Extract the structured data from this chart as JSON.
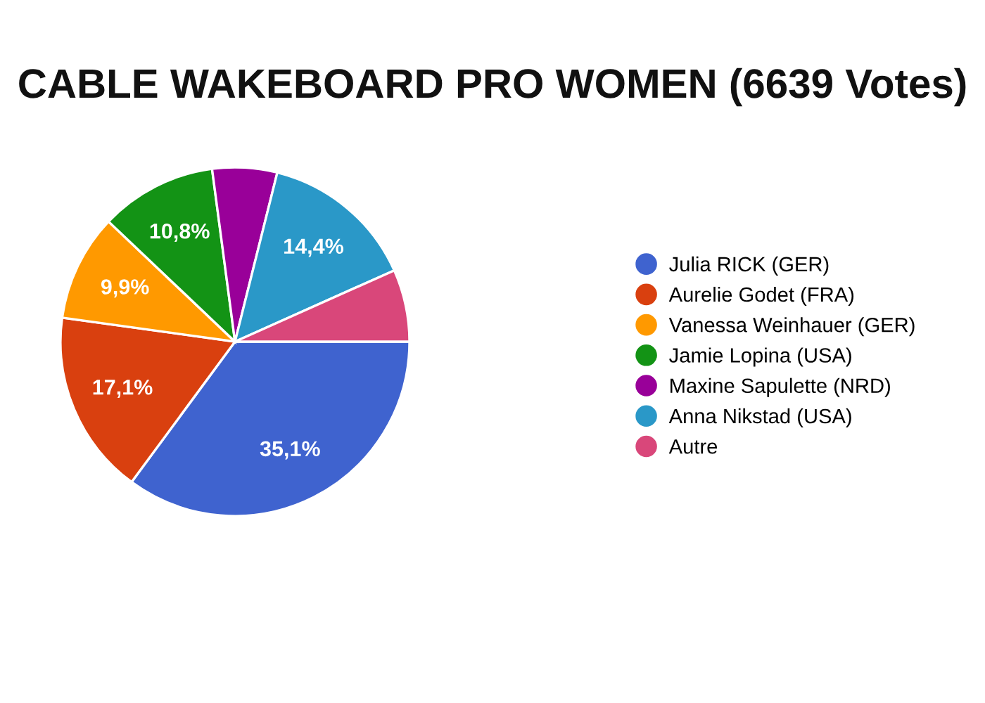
{
  "chart_data": {
    "type": "pie",
    "title": "CABLE WAKEBOARD PRO WOMEN (6639 Votes)",
    "categories": [
      "Julia RICK (GER)",
      "Aurelie Godet (FRA)",
      "Vanessa Weinhauer (GER)",
      "Jamie Lopina (USA)",
      "Maxine Sapulette (NRD)",
      "Anna Nikstad (USA)",
      "Autre"
    ],
    "values": [
      35.1,
      17.1,
      9.9,
      10.8,
      6.0,
      14.4,
      6.7
    ],
    "colors": [
      "#3f63cf",
      "#d9400f",
      "#ff9900",
      "#139315",
      "#990099",
      "#2a98c8",
      "#d9477a"
    ],
    "value_labels": [
      "35,1%",
      "17,1%",
      "9,9%",
      "10,8%",
      null,
      "14,4%",
      null
    ],
    "legend": "right"
  }
}
